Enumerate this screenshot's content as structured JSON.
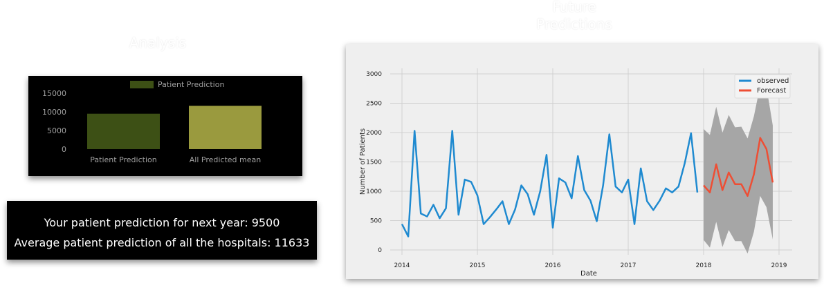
{
  "headings": {
    "analysis": "Analysis",
    "future_line1": "Future",
    "future_line2": "Predictions"
  },
  "summary": {
    "line1": "Your patient prediction for next year: 9500",
    "line2": "Average patient prediction of all the hospitals: 11633"
  },
  "chart_data": [
    {
      "type": "bar",
      "legend": [
        "Patient Prediction"
      ],
      "categories": [
        "Patient Prediction",
        "All Predicted mean"
      ],
      "values": [
        9500,
        11633
      ],
      "colors": [
        "#3d5015",
        "#9a9a3e"
      ],
      "yticks": [
        "0",
        "5000",
        "10000",
        "15000"
      ],
      "ylim": [
        0,
        15000
      ],
      "grid": false,
      "legend_position": "top-center"
    },
    {
      "type": "line",
      "xlabel": "Date",
      "ylabel": "Number of Patients",
      "xticks": [
        "2014",
        "2015",
        "2016",
        "2017",
        "2018",
        "2019"
      ],
      "yticks": [
        "0",
        "500",
        "1000",
        "1500",
        "2000",
        "2500",
        "3000"
      ],
      "ylim": [
        0,
        3000
      ],
      "xlim": [
        2013.9,
        2019.2
      ],
      "grid": true,
      "legend_position": "top-right",
      "series": [
        {
          "name": "observed",
          "color": "#1f8ad0",
          "x": [
            2014.0,
            2014.083,
            2014.167,
            2014.25,
            2014.333,
            2014.417,
            2014.5,
            2014.583,
            2014.667,
            2014.75,
            2014.833,
            2014.917,
            2015.0,
            2015.083,
            2015.167,
            2015.25,
            2015.333,
            2015.417,
            2015.5,
            2015.583,
            2015.667,
            2015.75,
            2015.833,
            2015.917,
            2016.0,
            2016.083,
            2016.167,
            2016.25,
            2016.333,
            2016.417,
            2016.5,
            2016.583,
            2016.667,
            2016.75,
            2016.833,
            2016.917,
            2017.0,
            2017.083,
            2017.167,
            2017.25,
            2017.333,
            2017.417,
            2017.5,
            2017.583,
            2017.667,
            2017.75,
            2017.833,
            2017.917
          ],
          "values": [
            440,
            230,
            2030,
            620,
            570,
            770,
            540,
            710,
            2030,
            600,
            1200,
            1160,
            930,
            440,
            560,
            690,
            830,
            440,
            690,
            1100,
            950,
            600,
            1000,
            1620,
            380,
            1220,
            1150,
            880,
            1600,
            1020,
            840,
            490,
            1100,
            1970,
            1080,
            980,
            1200,
            440,
            1390,
            830,
            680,
            840,
            1050,
            980,
            1080,
            1480,
            1990,
            980
          ]
        },
        {
          "name": "Forecast",
          "color": "#ee4e34",
          "x": [
            2018.0,
            2018.083,
            2018.167,
            2018.25,
            2018.333,
            2018.417,
            2018.5,
            2018.583,
            2018.667,
            2018.75,
            2018.833,
            2018.917
          ],
          "values": [
            1100,
            980,
            1460,
            1020,
            1320,
            1120,
            1120,
            920,
            1290,
            1910,
            1720,
            1150
          ]
        }
      ],
      "confidence_band": {
        "color": "#a6a6a6",
        "x": [
          2018.0,
          2018.083,
          2018.167,
          2018.25,
          2018.333,
          2018.417,
          2018.5,
          2018.583,
          2018.667,
          2018.75,
          2018.833,
          2018.917
        ],
        "upper": [
          2060,
          1960,
          2440,
          2000,
          2300,
          2090,
          2100,
          1900,
          2280,
          2800,
          2780,
          2120
        ],
        "lower": [
          170,
          40,
          480,
          50,
          340,
          150,
          150,
          -60,
          310,
          920,
          730,
          180
        ]
      }
    }
  ]
}
